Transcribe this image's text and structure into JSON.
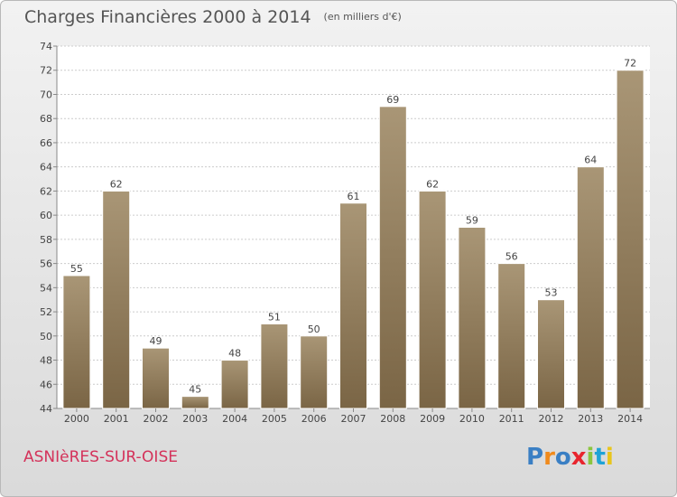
{
  "title": "Charges Financières 2000 à 2014",
  "unit": "(en milliers d'€)",
  "commune": "ASNIèRES-SUR-OISE",
  "logo": {
    "text": "Proxiti",
    "colors": [
      "#3a7fc4",
      "#f08a1c",
      "#3a7fc4",
      "#e8252e",
      "#8bc53f",
      "#1fa3d6",
      "#e8c51c"
    ]
  },
  "colors": {
    "bar_light": "#a99676",
    "bar_dark": "#7a6545",
    "label": "#444444",
    "grid": "#cccccc"
  },
  "chart_data": {
    "type": "bar",
    "title": "Charges Financières 2000 à 2014",
    "subtitle": "(en milliers d'€)",
    "categories": [
      "2000",
      "2001",
      "2002",
      "2003",
      "2004",
      "2005",
      "2006",
      "2007",
      "2008",
      "2009",
      "2010",
      "2011",
      "2012",
      "2013",
      "2014"
    ],
    "values": [
      55,
      62,
      49,
      45,
      48,
      51,
      50,
      61,
      69,
      62,
      59,
      56,
      53,
      64,
      72
    ],
    "yticks": [
      44,
      46,
      48,
      50,
      52,
      54,
      56,
      58,
      60,
      62,
      64,
      66,
      68,
      70,
      72,
      74
    ],
    "ylim": [
      44,
      74
    ],
    "grid": true,
    "data_labels": true
  }
}
